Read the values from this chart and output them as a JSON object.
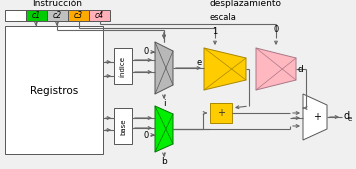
{
  "title": "Instrucción",
  "desp_label": "desplazamiento",
  "escala_label": "escala",
  "c1_label": "c1",
  "c2_label": "c2",
  "c3_label": "c3",
  "c4_label": "c4",
  "c1_color": "#00cc00",
  "c2_color": "#c0c0c0",
  "c3_color": "#ffaa00",
  "c4_color": "#ffb0b8",
  "reg_label": "Registros",
  "indice_label": "índice",
  "base_label": "base",
  "mux_gray_color": "#b8b8b8",
  "mux_green_color": "#00ee00",
  "mux_yellow_color": "#ffcc00",
  "mux_pink_color": "#ffb8c0",
  "bg_color": "#f0f0f0",
  "line_color": "#666666",
  "label_i": "i",
  "label_b": "b",
  "label_e": "e",
  "label_d": "d",
  "label_de_main": "d",
  "label_de_sub": "e",
  "label_0": "0",
  "label_1": "1",
  "label_plus": "+",
  "label_times": "+"
}
